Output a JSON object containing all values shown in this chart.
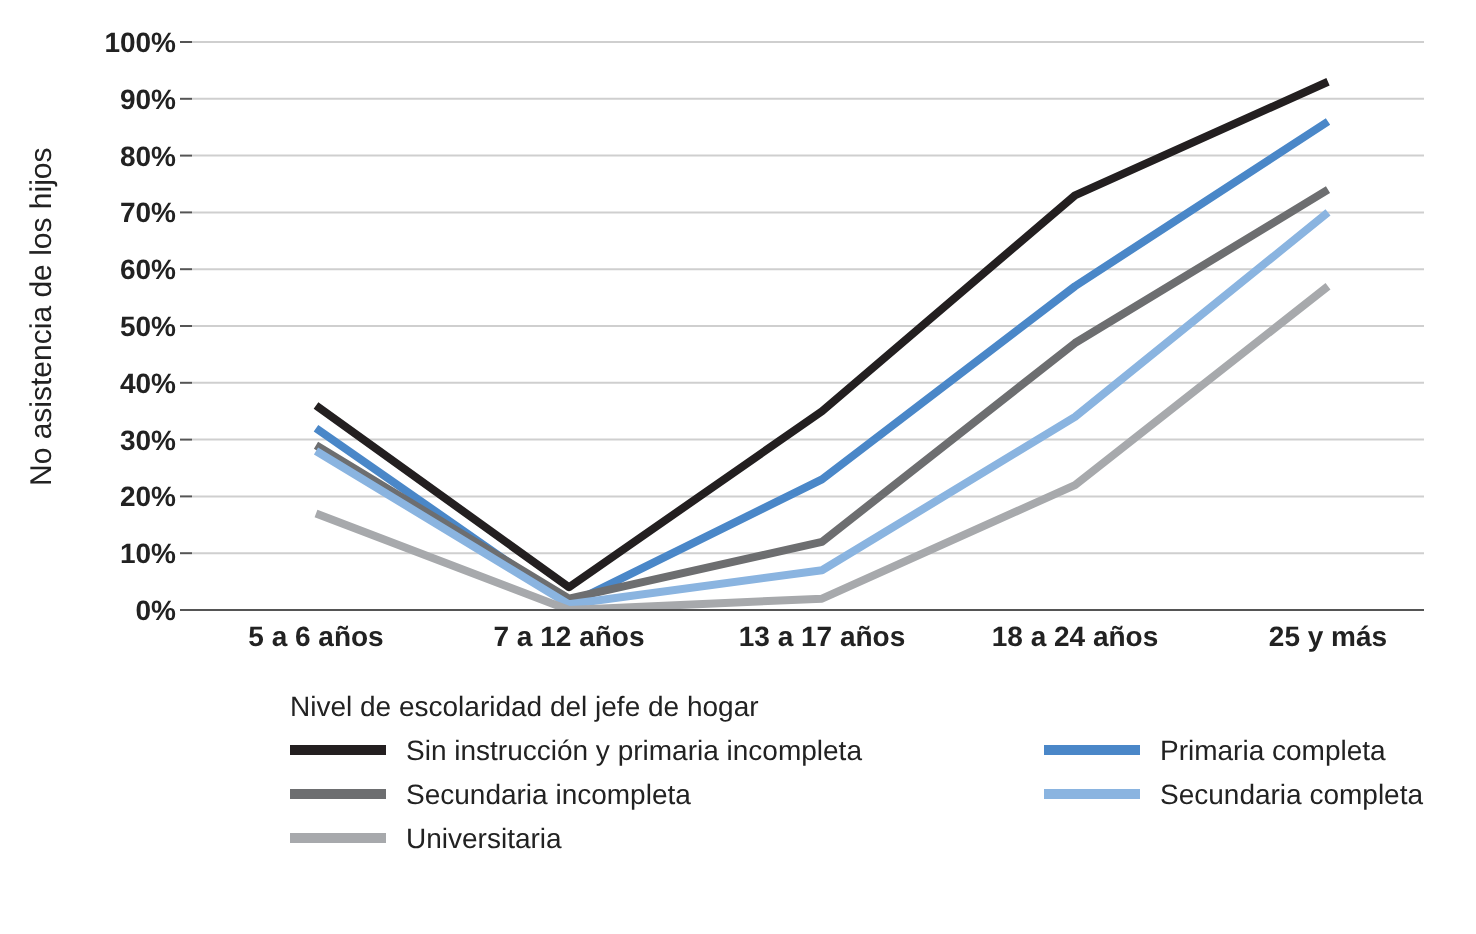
{
  "chart_data": {
    "type": "line",
    "ylabel": "No asistencia de los hijos",
    "legend_title": "Nivel de escolaridad del jefe de hogar",
    "categories": [
      "5 a 6 años",
      "7 a 12 años",
      "13 a 17 años",
      "18 a 24 años",
      "25 y más"
    ],
    "series": [
      {
        "name": "Sin instrucción y primaria incompleta",
        "color": "#231f20",
        "values": [
          36,
          4,
          35,
          73,
          93
        ]
      },
      {
        "name": "Primaria completa",
        "color": "#4a87c8",
        "values": [
          32,
          1,
          23,
          57,
          86
        ]
      },
      {
        "name": "Secundaria incompleta",
        "color": "#6d6e70",
        "values": [
          29,
          2,
          12,
          47,
          74
        ]
      },
      {
        "name": "Secundaria completa",
        "color": "#8ab4e0",
        "values": [
          28,
          1,
          7,
          34,
          70
        ]
      },
      {
        "name": "Universitaria",
        "color": "#a7a9ac",
        "values": [
          17,
          0,
          2,
          22,
          57
        ]
      }
    ],
    "ylim": [
      0,
      100
    ],
    "yticks": [
      {
        "value": 0,
        "label": "0%"
      },
      {
        "value": 10,
        "label": "10%"
      },
      {
        "value": 20,
        "label": "20%"
      },
      {
        "value": 30,
        "label": "30%"
      },
      {
        "value": 40,
        "label": "40%"
      },
      {
        "value": 50,
        "label": "50%"
      },
      {
        "value": 60,
        "label": "60%"
      },
      {
        "value": 70,
        "label": "70%"
      },
      {
        "value": 80,
        "label": "80%"
      },
      {
        "value": 90,
        "label": "90%"
      },
      {
        "value": 100,
        "label": "100%"
      }
    ],
    "grid": "y",
    "legend": "bottom",
    "marker": "none",
    "line_style": "solid"
  }
}
